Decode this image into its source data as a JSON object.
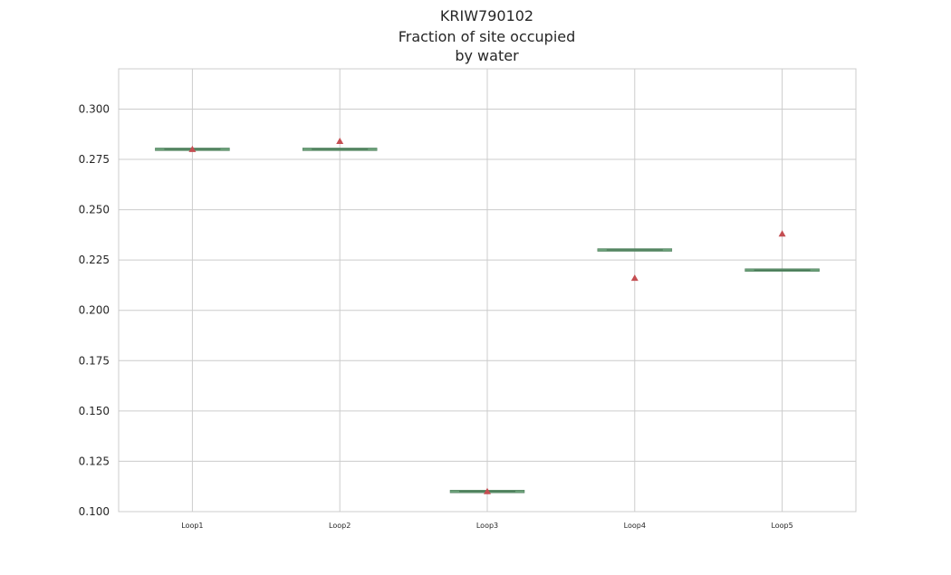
{
  "chart_data": {
    "type": "box",
    "title_lines": [
      "KRIW790102",
      "Fraction of site occupied",
      "by water"
    ],
    "categories": [
      "Loop1",
      "Loop2",
      "Loop3",
      "Loop4",
      "Loop5"
    ],
    "medians": [
      0.28,
      0.28,
      0.11,
      0.23,
      0.22
    ],
    "means": [
      0.28,
      0.284,
      0.11,
      0.216,
      0.238
    ],
    "ylim": [
      0.1,
      0.32
    ],
    "yticks": [
      "0.100",
      "0.125",
      "0.150",
      "0.175",
      "0.200",
      "0.225",
      "0.250",
      "0.275",
      "0.300"
    ],
    "xlabel": "",
    "ylabel": "",
    "grid": true,
    "colors": {
      "grid": "#cccccc",
      "box_line": "#6a9f78",
      "mean_marker": "#c44e52",
      "text": "#262626"
    }
  }
}
